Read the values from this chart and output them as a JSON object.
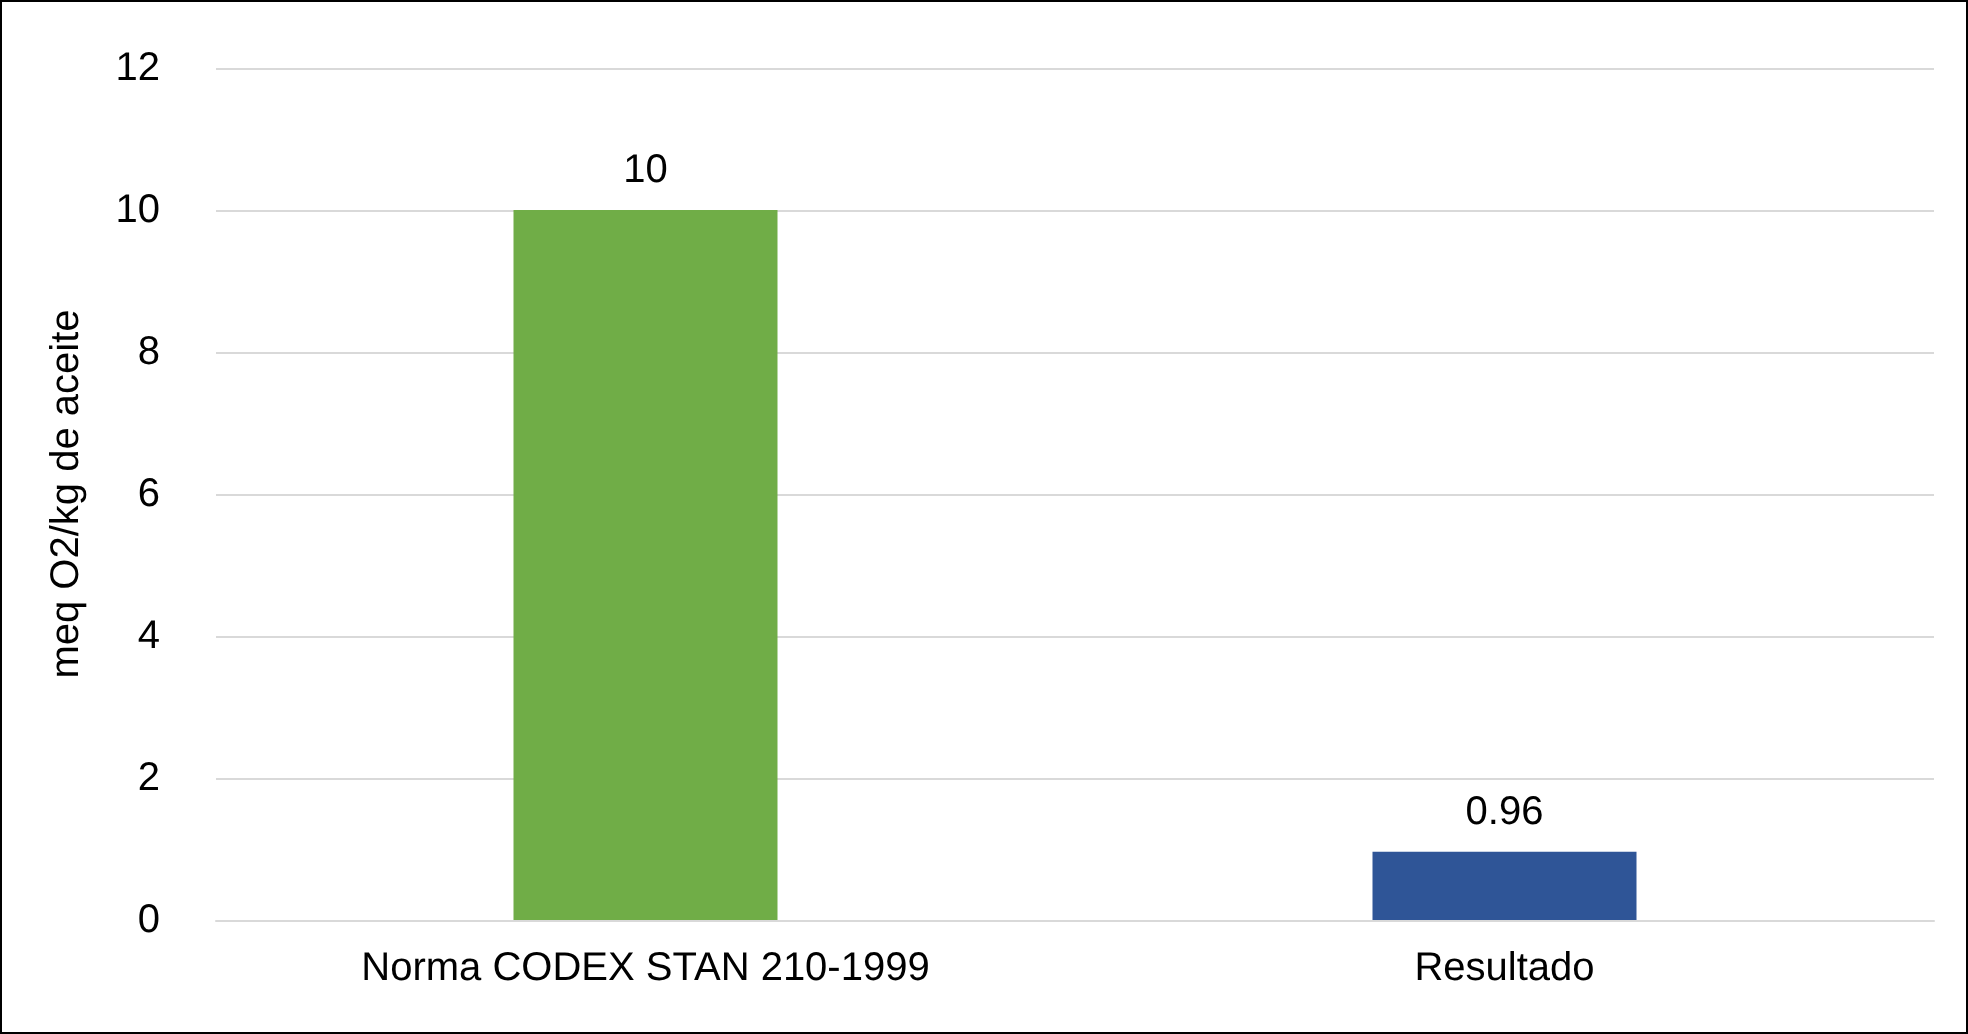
{
  "chart_data": {
    "type": "bar",
    "ylabel": "meq O2/kg de aceite",
    "categories": [
      "Norma CODEX STAN 210-1999",
      "Resultado"
    ],
    "values": [
      10,
      0.96
    ],
    "colors": [
      "#70ad47",
      "#2f5597"
    ],
    "ylim": [
      0,
      12
    ],
    "yticks": [
      0,
      2,
      4,
      6,
      8,
      10,
      12
    ],
    "grid": "y",
    "data_labels": true
  }
}
